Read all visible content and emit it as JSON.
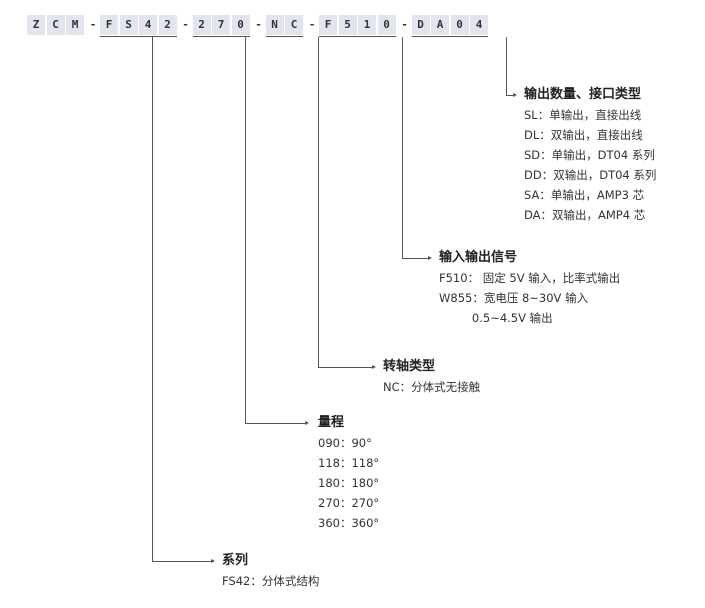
{
  "code_segments": [
    {
      "chars": [
        "Z",
        "C",
        "M"
      ]
    },
    {
      "chars": [
        "F",
        "S",
        "4",
        "2"
      ]
    },
    {
      "chars": [
        "2",
        "7",
        "0"
      ]
    },
    {
      "chars": [
        "N",
        "C"
      ]
    },
    {
      "chars": [
        "F",
        "5",
        "1",
        "0"
      ]
    },
    {
      "chars": [
        "D",
        "A",
        "0",
        "4"
      ]
    }
  ],
  "separator": "-",
  "groups": {
    "output": {
      "title": "输出数量、接口类型",
      "items": [
        "SL：单输出，直接出线",
        "DL：双输出，直接出线",
        "SD：单输出，DT04 系列",
        "DD：双输出，DT04 系列",
        "SA：单输出，AMP3 芯",
        "DA：双输出，AMP4 芯"
      ]
    },
    "signal": {
      "title": "输入输出信号",
      "items": [
        "F510： 固定 5V 输入，比率式输出",
        "W855：宽电压 8~30V 输入",
        "         0.5~4.5V 输出"
      ]
    },
    "shaft": {
      "title": "转轴类型",
      "items": [
        "NC：分体式无接触"
      ]
    },
    "range": {
      "title": "量程",
      "items": [
        "090：90°",
        "118：118°",
        "180：180°",
        "270：270°",
        "360：360°"
      ]
    },
    "series": {
      "title": "系列",
      "items": [
        "FS42：分体式结构"
      ]
    }
  },
  "colors": {
    "box_bg": "#e2e5ee",
    "line": "#555555",
    "text": "#333333"
  }
}
